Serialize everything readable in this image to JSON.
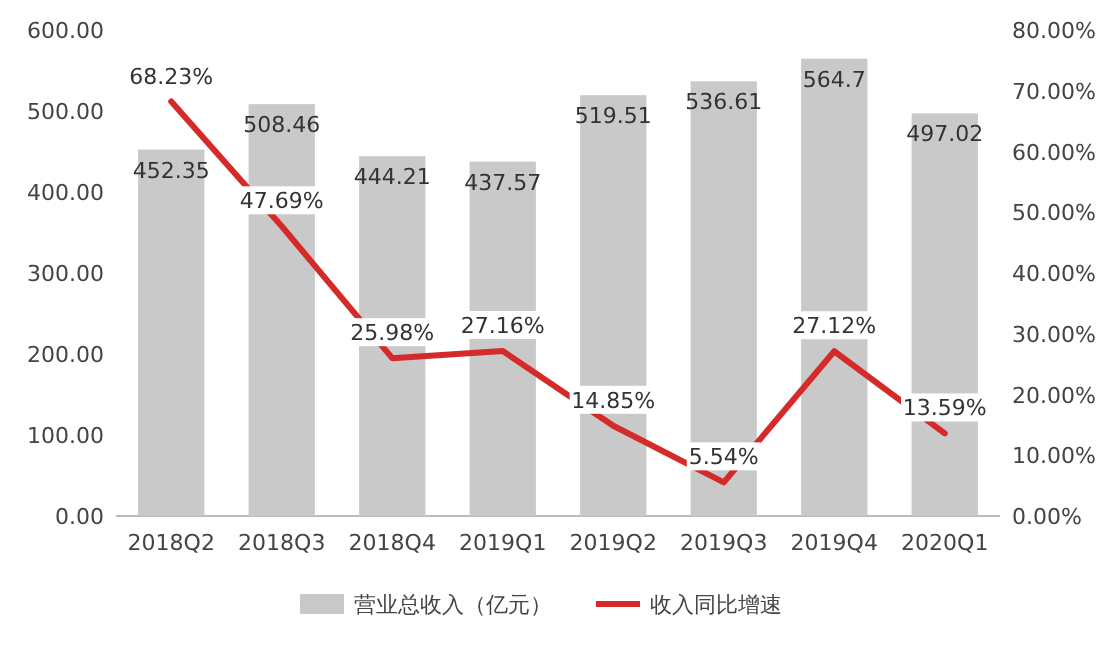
{
  "chart_data": {
    "type": "bar",
    "categories": [
      "2018Q2",
      "2018Q3",
      "2018Q4",
      "2019Q1",
      "2019Q2",
      "2019Q3",
      "2019Q4",
      "2020Q1"
    ],
    "series": [
      {
        "name": "营业总收入（亿元）",
        "color": "#c9c9c9",
        "values": [
          452.35,
          508.46,
          444.21,
          437.57,
          519.51,
          536.61,
          564.7,
          497.02
        ],
        "value_labels": [
          "452.35",
          "508.46",
          "444.21",
          "437.57",
          "519.51",
          "536.61",
          "564.7",
          "497.02"
        ]
      },
      {
        "name": "收入同比增速",
        "type": "line",
        "axis": "y2",
        "color": "#d42a2a",
        "values": [
          68.23,
          47.69,
          25.98,
          27.16,
          14.85,
          5.54,
          27.12,
          13.59
        ],
        "value_labels": [
          "68.23%",
          "47.69%",
          "25.98%",
          "27.16%",
          "14.85%",
          "5.54%",
          "27.12%",
          "13.59%"
        ]
      }
    ],
    "ylim": [
      0,
      600
    ],
    "yticks": [
      {
        "value": 0,
        "label": "0.00"
      },
      {
        "value": 100,
        "label": "100.00"
      },
      {
        "value": 200,
        "label": "200.00"
      },
      {
        "value": 300,
        "label": "300.00"
      },
      {
        "value": 400,
        "label": "400.00"
      },
      {
        "value": 500,
        "label": "500.00"
      },
      {
        "value": 600,
        "label": "600.00"
      }
    ],
    "y2lim": [
      0,
      80
    ],
    "y2ticks": [
      {
        "value": 0,
        "label": "0.00%"
      },
      {
        "value": 10,
        "label": "10.00%"
      },
      {
        "value": 20,
        "label": "20.00%"
      },
      {
        "value": 30,
        "label": "30.00%"
      },
      {
        "value": 40,
        "label": "40.00%"
      },
      {
        "value": 50,
        "label": "50.00%"
      },
      {
        "value": 60,
        "label": "60.00%"
      },
      {
        "value": 70,
        "label": "70.00%"
      },
      {
        "value": 80,
        "label": "80.00%"
      }
    ],
    "legend": "bottom"
  }
}
